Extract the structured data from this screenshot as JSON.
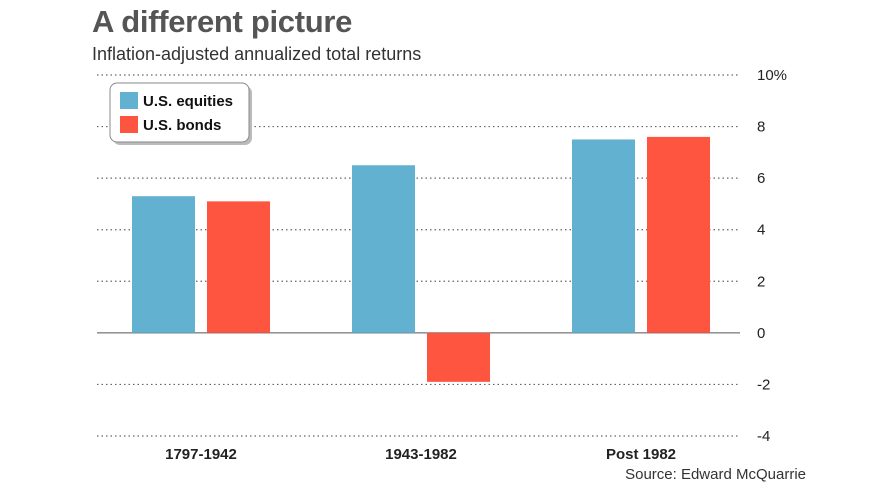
{
  "header": {
    "title": "A different picture",
    "subtitle": "Inflation-adjusted annualized total returns"
  },
  "footer": {
    "source": "Source: Edward McQuarrie"
  },
  "chart_data": {
    "type": "bar",
    "title": "A different picture",
    "subtitle": "Inflation-adjusted annualized total returns",
    "xlabel": "",
    "ylabel": "",
    "categories": [
      "1797-1942",
      "1943-1982",
      "Post 1982"
    ],
    "series": [
      {
        "name": "U.S. equities",
        "color": "#62b1d0",
        "values": [
          5.3,
          6.5,
          7.5
        ]
      },
      {
        "name": "U.S. bonds",
        "color": "#fe5540",
        "values": [
          5.1,
          -1.9,
          7.6
        ]
      }
    ],
    "ylim": [
      -4,
      10
    ],
    "yticks": [
      10,
      8,
      6,
      4,
      2,
      0,
      -2,
      -4
    ],
    "ytick_labels": [
      "10%",
      "8",
      "6",
      "4",
      "2",
      "0",
      "-2",
      "-4"
    ],
    "grid": true,
    "legend": "top-left",
    "y_axis_side": "right"
  }
}
